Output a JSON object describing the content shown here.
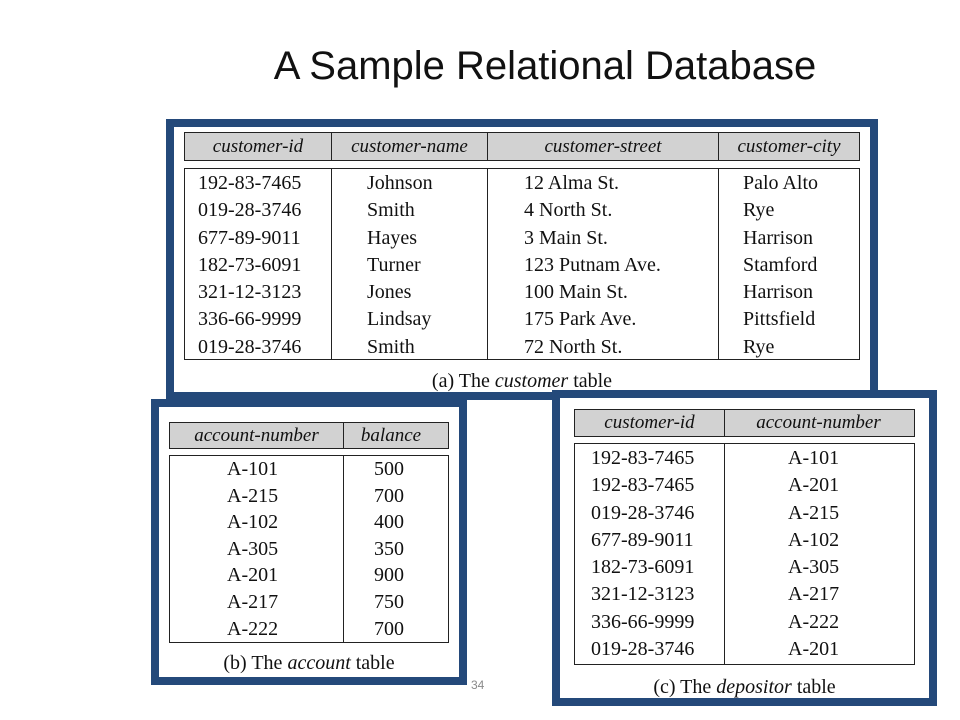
{
  "slide": {
    "title": "A Sample Relational Database",
    "page_number": "34"
  },
  "customer_table": {
    "headers": [
      "customer-id",
      "customer-name",
      "customer-street",
      "customer-city"
    ],
    "rows": [
      [
        "192-83-7465",
        "Johnson",
        "12 Alma St.",
        "Palo Alto"
      ],
      [
        "019-28-3746",
        "Smith",
        "4 North St.",
        "Rye"
      ],
      [
        "677-89-9011",
        "Hayes",
        "3 Main St.",
        "Harrison"
      ],
      [
        "182-73-6091",
        "Turner",
        "123 Putnam Ave.",
        "Stamford"
      ],
      [
        "321-12-3123",
        "Jones",
        "100 Main St.",
        "Harrison"
      ],
      [
        "336-66-9999",
        "Lindsay",
        "175 Park Ave.",
        "Pittsfield"
      ],
      [
        "019-28-3746",
        "Smith",
        "72 North St.",
        "Rye"
      ]
    ],
    "caption_prefix": "(a) The ",
    "caption_italic": "customer",
    "caption_suffix": " table"
  },
  "account_table": {
    "headers": [
      "account-number",
      "balance"
    ],
    "rows": [
      [
        "A-101",
        "500"
      ],
      [
        "A-215",
        "700"
      ],
      [
        "A-102",
        "400"
      ],
      [
        "A-305",
        "350"
      ],
      [
        "A-201",
        "900"
      ],
      [
        "A-217",
        "750"
      ],
      [
        "A-222",
        "700"
      ]
    ],
    "caption_prefix": "(b) The ",
    "caption_italic": "account",
    "caption_suffix": " table"
  },
  "depositor_table": {
    "headers": [
      "customer-id",
      "account-number"
    ],
    "rows": [
      [
        "192-83-7465",
        "A-101"
      ],
      [
        "192-83-7465",
        "A-201"
      ],
      [
        "019-28-3746",
        "A-215"
      ],
      [
        "677-89-9011",
        "A-102"
      ],
      [
        "182-73-6091",
        "A-305"
      ],
      [
        "321-12-3123",
        "A-217"
      ],
      [
        "336-66-9999",
        "A-222"
      ],
      [
        "019-28-3746",
        "A-201"
      ]
    ],
    "caption_prefix": "(c) The ",
    "caption_italic": "depositor",
    "caption_suffix": " table"
  },
  "colors": {
    "frame_border": "#24497a",
    "header_fill": "#d2d2d2"
  }
}
